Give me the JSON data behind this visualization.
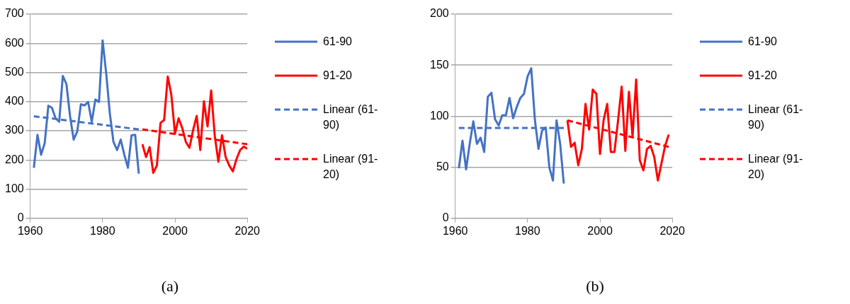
{
  "chart_data": [
    {
      "type": "line",
      "annotations": [
        "(a)"
      ],
      "xlim": [
        1960,
        2020
      ],
      "xticks": [
        1960,
        1980,
        2000,
        2020
      ],
      "ylim": [
        0,
        700
      ],
      "yticks": [
        0,
        100,
        200,
        300,
        400,
        500,
        600,
        700
      ],
      "grid": "y",
      "legend": "right",
      "marker": "none",
      "series": [
        {
          "name": "61-90",
          "color": "#4472c4",
          "x": [
            1961,
            1962,
            1963,
            1964,
            1965,
            1966,
            1967,
            1968,
            1969,
            1970,
            1971,
            1972,
            1973,
            1974,
            1975,
            1976,
            1977,
            1978,
            1979,
            1980,
            1981,
            1982,
            1983,
            1984,
            1985,
            1986,
            1987,
            1988,
            1989,
            1990
          ],
          "values": [
            173,
            286,
            218,
            258,
            386,
            379,
            343,
            331,
            488,
            460,
            351,
            270,
            298,
            391,
            387,
            399,
            331,
            407,
            399,
            610,
            496,
            359,
            262,
            234,
            270,
            218,
            173,
            285,
            286,
            153
          ]
        },
        {
          "name": "91-20",
          "color": "#ff0000",
          "x": [
            1991,
            1992,
            1993,
            1994,
            1995,
            1996,
            1997,
            1998,
            1999,
            2000,
            2001,
            2002,
            2003,
            2004,
            2005,
            2006,
            2007,
            2008,
            2009,
            2010,
            2011,
            2012,
            2013,
            2014,
            2015,
            2016,
            2017,
            2018,
            2019,
            2020
          ],
          "values": [
            254,
            210,
            244,
            156,
            181,
            327,
            337,
            486,
            423,
            290,
            343,
            310,
            262,
            242,
            302,
            351,
            234,
            401,
            315,
            438,
            282,
            194,
            285,
            210,
            181,
            161,
            203,
            234,
            246,
            238
          ]
        },
        {
          "name": "Linear (61-90)",
          "color": "#4472c4",
          "line_style": "dashed",
          "x": [
            1961,
            1990
          ],
          "values": [
            350,
            305
          ]
        },
        {
          "name": "Linear (91-20)",
          "color": "#ff0000",
          "line_style": "dashed",
          "x": [
            1991,
            2020
          ],
          "values": [
            305,
            254
          ]
        }
      ]
    },
    {
      "type": "line",
      "annotations": [
        "(b)"
      ],
      "xlim": [
        1960,
        2020
      ],
      "xticks": [
        1960,
        1980,
        2000,
        2020
      ],
      "ylim": [
        0,
        200
      ],
      "yticks": [
        0,
        50,
        100,
        150,
        200
      ],
      "grid": "y",
      "legend": "right",
      "marker": "none",
      "series": [
        {
          "name": "61-90",
          "color": "#4472c4",
          "x": [
            1961,
            1962,
            1963,
            1964,
            1965,
            1966,
            1967,
            1968,
            1969,
            1970,
            1971,
            1972,
            1973,
            1974,
            1975,
            1976,
            1977,
            1978,
            1979,
            1980,
            1981,
            1982,
            1983,
            1984,
            1985,
            1986,
            1987,
            1988,
            1989,
            1990
          ],
          "values": [
            49,
            76,
            48,
            73,
            95,
            73,
            79,
            65,
            119,
            123,
            97,
            91,
            101,
            101,
            118,
            98,
            109,
            118,
            122,
            139,
            147,
            97,
            68,
            86,
            89,
            50,
            37,
            96,
            73,
            34
          ]
        },
        {
          "name": "91-20",
          "color": "#ff0000",
          "x": [
            1991,
            1992,
            1993,
            1994,
            1995,
            1996,
            1997,
            1998,
            1999,
            2000,
            2001,
            2002,
            2003,
            2004,
            2005,
            2006,
            2007,
            2008,
            2009,
            2010,
            2011,
            2012,
            2013,
            2014,
            2015,
            2016,
            2017,
            2018,
            2019
          ],
          "values": [
            96,
            70,
            74,
            52,
            68,
            112,
            87,
            126,
            122,
            63,
            96,
            112,
            65,
            65,
            96,
            129,
            66,
            124,
            80,
            136,
            57,
            47,
            68,
            71,
            60,
            37,
            54,
            71,
            82
          ]
        },
        {
          "name": "Linear (61-90)",
          "color": "#4472c4",
          "line_style": "dashed",
          "x": [
            1961,
            1990
          ],
          "values": [
            88.5,
            88.5
          ]
        },
        {
          "name": "Linear (91-20)",
          "color": "#ff0000",
          "line_style": "dashed",
          "x": [
            1991,
            2019
          ],
          "values": [
            96,
            70
          ]
        }
      ]
    }
  ]
}
